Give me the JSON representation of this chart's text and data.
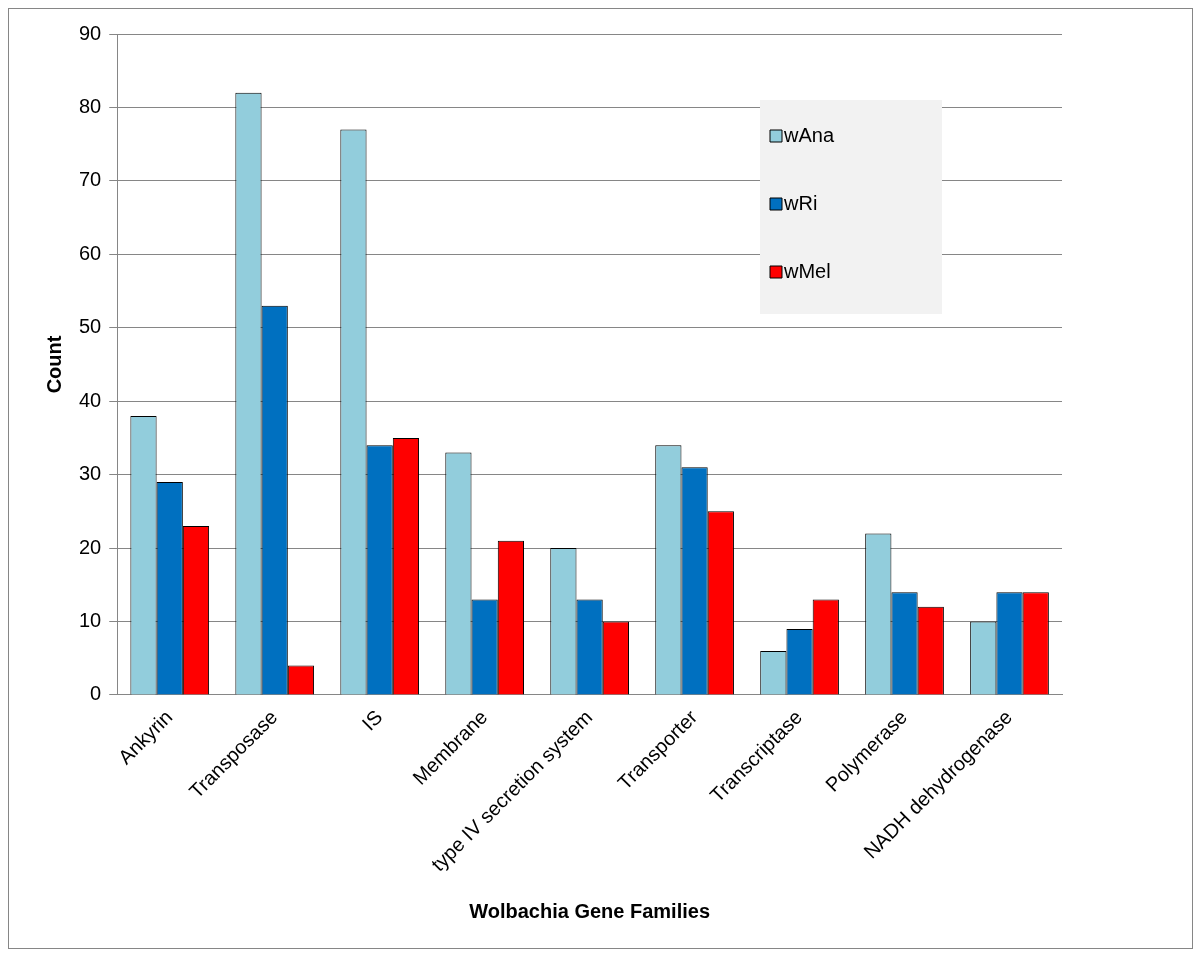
{
  "chart_data": {
    "type": "bar",
    "xlabel": "Wolbachia Gene Families",
    "ylabel": "Count",
    "categories": [
      "Ankyrin",
      "Transposase",
      "IS",
      "Membrane",
      "type IV secretion system",
      "Transporter",
      "Transcriptase",
      "Polymerase",
      "NADH dehydrogenase"
    ],
    "series": [
      {
        "name": "wAna",
        "color": "#92cddc",
        "values": [
          38,
          82,
          77,
          33,
          20,
          34,
          6,
          22,
          10
        ]
      },
      {
        "name": "wRi",
        "color": "#0070c0",
        "values": [
          29,
          53,
          34,
          13,
          13,
          31,
          9,
          14,
          14
        ]
      },
      {
        "name": "wMel",
        "color": "#ff0000",
        "values": [
          23,
          4,
          35,
          21,
          10,
          25,
          13,
          12,
          14
        ]
      }
    ],
    "ylim": [
      0,
      90
    ],
    "yticks": [
      0,
      10,
      20,
      30,
      40,
      50,
      60,
      70,
      80,
      90
    ],
    "grid": "y",
    "legend": "top right"
  }
}
